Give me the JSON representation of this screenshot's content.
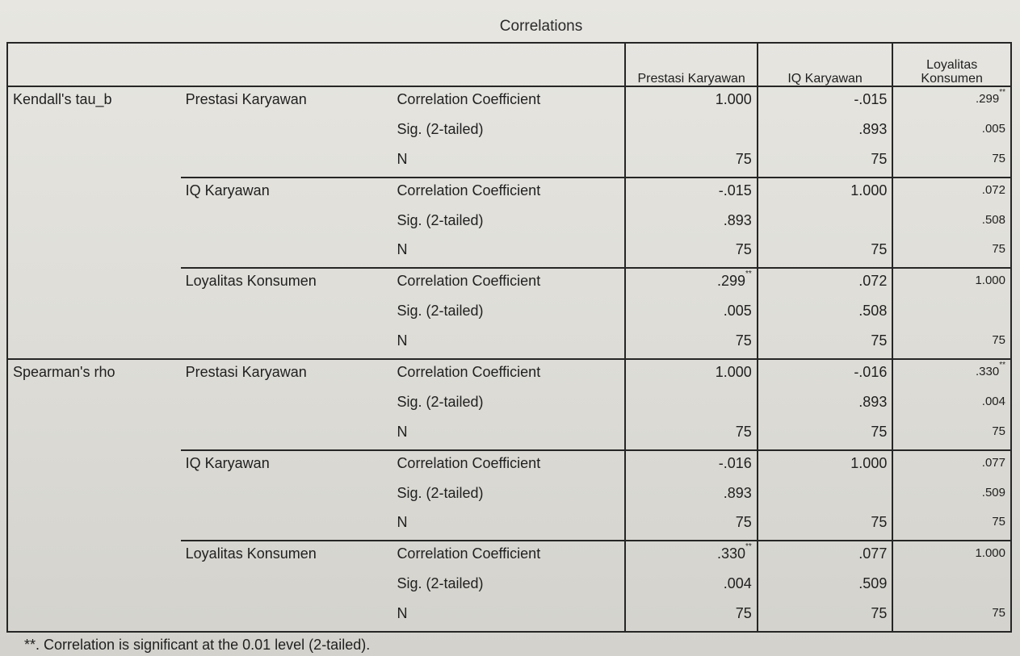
{
  "title": "Correlations",
  "columns": [
    "Prestasi Karyawan",
    "IQ Karyawan",
    "Loyalitas Konsumen"
  ],
  "stat_labels": [
    "Correlation Coefficient",
    "Sig. (2-tailed)",
    "N"
  ],
  "methods": [
    {
      "name": "Kendall's tau_b",
      "rows": [
        {
          "variable": "Prestasi Karyawan",
          "coef": [
            "1.000",
            "-.015",
            ".299**"
          ],
          "sig": [
            "",
            ".893",
            ".005"
          ],
          "n": [
            "75",
            "75",
            "75"
          ]
        },
        {
          "variable": "IQ Karyawan",
          "coef": [
            "-.015",
            "1.000",
            ".072"
          ],
          "sig": [
            ".893",
            "",
            ".508"
          ],
          "n": [
            "75",
            "75",
            "75"
          ]
        },
        {
          "variable": "Loyalitas Konsumen",
          "coef": [
            ".299**",
            ".072",
            "1.000"
          ],
          "sig": [
            ".005",
            ".508",
            ""
          ],
          "n": [
            "75",
            "75",
            "75"
          ]
        }
      ]
    },
    {
      "name": "Spearman's rho",
      "rows": [
        {
          "variable": "Prestasi Karyawan",
          "coef": [
            "1.000",
            "-.016",
            ".330**"
          ],
          "sig": [
            "",
            ".893",
            ".004"
          ],
          "n": [
            "75",
            "75",
            "75"
          ]
        },
        {
          "variable": "IQ Karyawan",
          "coef": [
            "-.016",
            "1.000",
            ".077"
          ],
          "sig": [
            ".893",
            "",
            ".509"
          ],
          "n": [
            "75",
            "75",
            "75"
          ]
        },
        {
          "variable": "Loyalitas Konsumen",
          "coef": [
            ".330**",
            ".077",
            "1.000"
          ],
          "sig": [
            ".004",
            ".509",
            ""
          ],
          "n": [
            "75",
            "75",
            "75"
          ]
        }
      ]
    }
  ],
  "footnote": "**. Correlation is significant at the 0.01 level (2-tailed)."
}
